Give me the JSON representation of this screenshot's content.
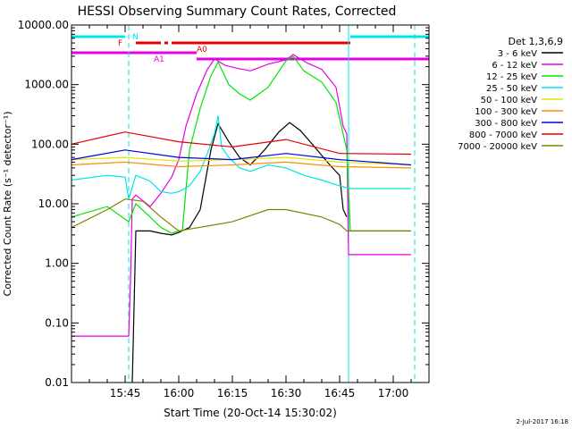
{
  "chart_data": {
    "type": "line",
    "title": "HESSI Observing Summary Count Rates, Corrected",
    "xlabel": "Start Time (20-Oct-14 15:30:02)",
    "ylabel": "Corrected Count Rate (s⁻¹ detector⁻¹)",
    "y_scale": "log",
    "ylim": [
      0.01,
      10000
    ],
    "xlim": [
      "15:30",
      "17:10"
    ],
    "x_ticks": [
      "15:45",
      "16:00",
      "16:15",
      "16:30",
      "16:45",
      "17:00"
    ],
    "y_ticks": [
      "0.01",
      "0.10",
      "1.00",
      "10.00",
      "100.00",
      "1000.00",
      "10000.00"
    ],
    "legend_title": "Det 1,3,6,9",
    "legend_position": "right, outside plot",
    "footer": "2-Jul-2017 16:18",
    "flags": [
      {
        "label": "N",
        "color": "#00e5e5"
      },
      {
        "label": "F",
        "color": "#e50000"
      },
      {
        "label": "A0",
        "color": "#e50000"
      },
      {
        "label": "A1",
        "color": "#e500e5"
      }
    ],
    "series": [
      {
        "name": "3 - 6 keV",
        "color": "#000000",
        "x": [
          "15:47",
          "15:48",
          "15:52",
          "15:55",
          "15:58",
          "16:00",
          "16:03",
          "16:06",
          "16:09",
          "16:11",
          "16:14",
          "16:17",
          "16:20",
          "16:24",
          "16:28",
          "16:31",
          "16:34",
          "16:38",
          "16:41",
          "16:43",
          "16:45",
          "16:46",
          "16:47"
        ],
        "values": [
          0.01,
          3.5,
          3.5,
          3.2,
          3.0,
          3.3,
          4,
          8,
          80,
          220,
          110,
          60,
          45,
          80,
          160,
          230,
          170,
          90,
          55,
          40,
          30,
          8,
          6
        ]
      },
      {
        "name": "6 - 12 keV",
        "color": "#e500e5",
        "x": [
          "15:30",
          "15:40",
          "15:46",
          "15:46.5",
          "15:47",
          "15:48",
          "15:52",
          "15:55",
          "15:58",
          "16:00",
          "16:02",
          "16:05",
          "16:08",
          "16:10",
          "16:13",
          "16:16",
          "16:20",
          "16:25",
          "16:30",
          "16:32",
          "16:36",
          "16:40",
          "16:44",
          "16:46",
          "16:47",
          "16:47.5",
          "17:05"
        ],
        "values": [
          0.06,
          0.06,
          0.06,
          0.5,
          12,
          14,
          9,
          15,
          28,
          55,
          200,
          700,
          1800,
          2700,
          2100,
          1900,
          1700,
          2200,
          2600,
          3200,
          2300,
          1800,
          900,
          200,
          150,
          1.4,
          1.4
        ]
      },
      {
        "name": "12 - 25 keV",
        "color": "#00e500",
        "x": [
          "15:30",
          "15:40",
          "15:46",
          "15:48",
          "15:52",
          "15:55",
          "15:58",
          "16:00",
          "16:01",
          "16:03",
          "16:06",
          "16:09",
          "16:11",
          "16:14",
          "16:17",
          "16:20",
          "16:25",
          "16:30",
          "16:32",
          "16:35",
          "16:40",
          "16:44",
          "16:47",
          "16:48",
          "17:05"
        ],
        "values": [
          6,
          9,
          5,
          10,
          6,
          4,
          3.2,
          3.5,
          3.5,
          80,
          400,
          1400,
          2400,
          1000,
          700,
          550,
          900,
          2500,
          3000,
          1700,
          1100,
          500,
          80,
          3.5,
          3.5
        ]
      },
      {
        "name": "25 - 50 keV",
        "color": "#00e5e5",
        "x": [
          "15:30",
          "15:40",
          "15:45",
          "15:46",
          "15:48",
          "15:52",
          "15:55",
          "15:58",
          "16:00",
          "16:03",
          "16:06",
          "16:08",
          "16:10",
          "16:11",
          "16:12",
          "16:14",
          "16:17",
          "16:20",
          "16:25",
          "16:30",
          "16:35",
          "16:40",
          "16:45",
          "16:48",
          "17:05"
        ],
        "values": [
          25,
          30,
          28,
          12,
          30,
          24,
          16,
          15,
          16,
          20,
          35,
          70,
          150,
          300,
          90,
          60,
          40,
          35,
          45,
          40,
          30,
          25,
          20,
          18,
          18
        ]
      },
      {
        "name": "50 - 100 keV",
        "color": "#e5e500",
        "x": [
          "15:30",
          "15:45",
          "16:00",
          "16:15",
          "16:30",
          "16:45",
          "17:05"
        ],
        "values": [
          55,
          60,
          52,
          55,
          60,
          50,
          45
        ]
      },
      {
        "name": "100 - 300 keV",
        "color": "#ff8c00",
        "x": [
          "15:30",
          "15:45",
          "16:00",
          "16:15",
          "16:30",
          "16:45",
          "17:05"
        ],
        "values": [
          45,
          50,
          42,
          45,
          50,
          42,
          40
        ]
      },
      {
        "name": "300 - 800 keV",
        "color": "#0000e5",
        "x": [
          "15:30",
          "15:45",
          "16:00",
          "16:15",
          "16:30",
          "16:45",
          "17:05"
        ],
        "values": [
          55,
          80,
          60,
          55,
          70,
          55,
          45
        ]
      },
      {
        "name": "800 - 7000 keV",
        "color": "#e50000",
        "x": [
          "15:30",
          "15:45",
          "16:00",
          "16:15",
          "16:30",
          "16:45",
          "17:05"
        ],
        "values": [
          100,
          160,
          110,
          90,
          120,
          70,
          68
        ]
      },
      {
        "name": "7000 - 20000 keV",
        "color": "#808000",
        "x": [
          "15:30",
          "15:40",
          "15:45",
          "15:50",
          "15:55",
          "16:00",
          "16:15",
          "16:25",
          "16:30",
          "16:40",
          "16:45",
          "16:47",
          "17:05"
        ],
        "values": [
          4,
          8,
          12,
          11,
          6,
          3.5,
          5,
          8,
          8,
          6,
          4.5,
          3.5,
          3.5
        ]
      }
    ]
  }
}
